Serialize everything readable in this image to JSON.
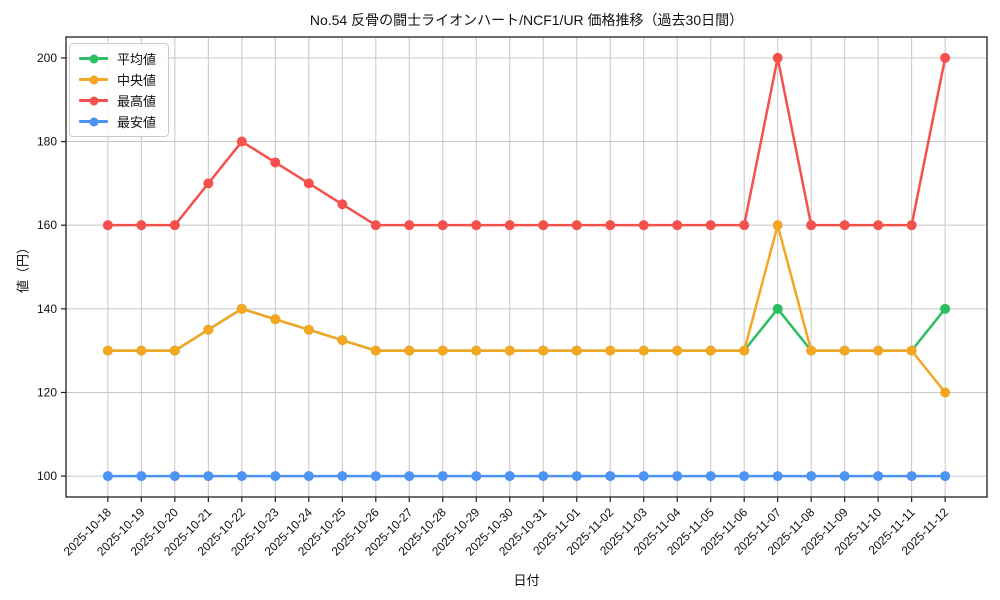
{
  "title": "No.54 反骨の闘士ライオンハート/NCF1/UR 価格推移（過去30日間）",
  "chart_data": {
    "type": "line",
    "title": "No.54 反骨の闘士ライオンハート/NCF1/UR 価格推移（過去30日間）",
    "xlabel": "日付",
    "ylabel": "値（円）",
    "x": [
      "2025-10-18",
      "2025-10-19",
      "2025-10-20",
      "2025-10-21",
      "2025-10-22",
      "2025-10-23",
      "2025-10-24",
      "2025-10-25",
      "2025-10-26",
      "2025-10-27",
      "2025-10-28",
      "2025-10-29",
      "2025-10-30",
      "2025-10-31",
      "2025-11-01",
      "2025-11-02",
      "2025-11-03",
      "2025-11-04",
      "2025-11-05",
      "2025-11-06",
      "2025-11-07",
      "2025-11-08",
      "2025-11-09",
      "2025-11-10",
      "2025-11-11",
      "2025-11-12"
    ],
    "series": [
      {
        "name": "平均値",
        "color": "#2dbe64",
        "values": [
          130,
          130,
          130,
          135,
          140,
          137.5,
          135,
          132.5,
          130,
          130,
          130,
          130,
          130,
          130,
          130,
          130,
          130,
          130,
          130,
          130,
          140,
          130,
          130,
          130,
          130,
          140
        ]
      },
      {
        "name": "中央値",
        "color": "#f5a623",
        "values": [
          130,
          130,
          130,
          135,
          140,
          137.5,
          135,
          132.5,
          130,
          130,
          130,
          130,
          130,
          130,
          130,
          130,
          130,
          130,
          130,
          130,
          160,
          130,
          130,
          130,
          130,
          120
        ]
      },
      {
        "name": "最高値",
        "color": "#f4514d",
        "values": [
          160,
          160,
          160,
          170,
          180,
          175,
          170,
          165,
          160,
          160,
          160,
          160,
          160,
          160,
          160,
          160,
          160,
          160,
          160,
          160,
          200,
          160,
          160,
          160,
          160,
          200
        ]
      },
      {
        "name": "最安値",
        "color": "#4d94f2",
        "values": [
          100,
          100,
          100,
          100,
          100,
          100,
          100,
          100,
          100,
          100,
          100,
          100,
          100,
          100,
          100,
          100,
          100,
          100,
          100,
          100,
          100,
          100,
          100,
          100,
          100,
          100
        ]
      }
    ],
    "ylim": [
      95,
      205
    ],
    "yticks": [
      100,
      120,
      140,
      160,
      180,
      200
    ],
    "grid": true,
    "legend_position": "upper left",
    "x_tick_rotation": 45
  },
  "colors": {
    "grid": "#c7c7c7",
    "axis_border": "#1f1f1f",
    "tick_text": "#111111",
    "background": "#ffffff"
  }
}
